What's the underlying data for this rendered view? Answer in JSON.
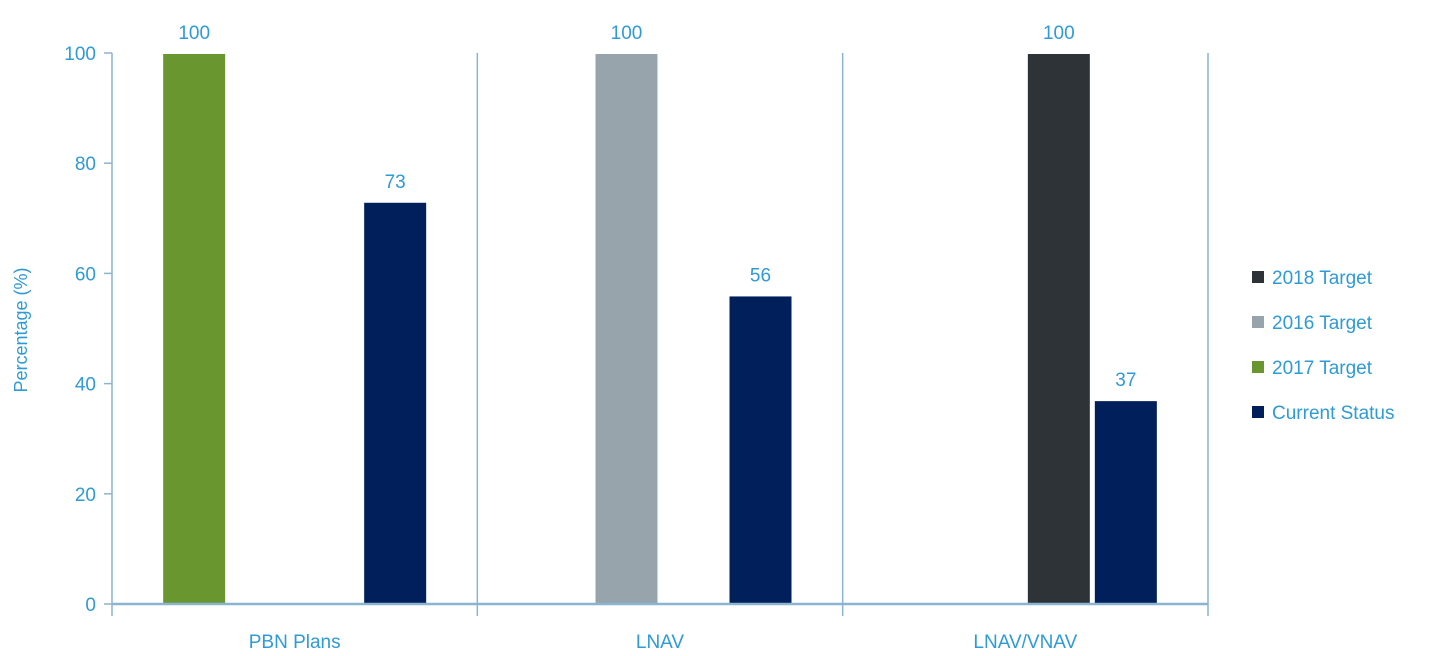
{
  "chart_data": {
    "type": "bar",
    "title": "",
    "xlabel": "",
    "ylabel": "Percentage (%)",
    "ylim": [
      0,
      100
    ],
    "yticks": [
      0,
      20,
      40,
      60,
      80,
      100
    ],
    "categories": [
      "PBN Plans",
      "LNAV",
      "LNAV/VNAV"
    ],
    "grid": false,
    "legend_position": "right",
    "series": [
      {
        "name": "2017 Target",
        "color": "#6a962f",
        "values": [
          100,
          null,
          null
        ]
      },
      {
        "name": "2016 Target",
        "color": "#98a4ac",
        "values": [
          null,
          100,
          null
        ]
      },
      {
        "name": "2018 Target",
        "color": "#2e3337",
        "values": [
          null,
          null,
          100
        ]
      },
      {
        "name": "Current Status",
        "color": "#001f5b",
        "values": [
          73,
          56,
          37
        ]
      }
    ],
    "legend_order": [
      "2018 Target",
      "2016 Target",
      "2017 Target",
      "Current Status"
    ],
    "text_color": "#2e9bd6",
    "axis_color": "#8ab4cf"
  }
}
